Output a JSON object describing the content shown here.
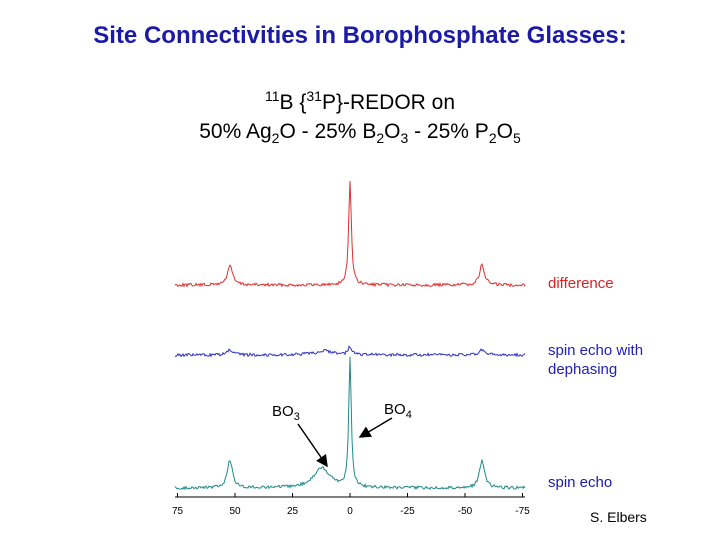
{
  "title": "Site Connectivities in Borophosphate Glasses:",
  "subtitle": {
    "line1": [
      "11",
      "B {",
      "31",
      "P}-REDOR on"
    ],
    "line2": [
      "50% Ag",
      "2",
      "O - 25% B",
      "2",
      "O",
      "3",
      " - 25% P",
      "2",
      "O",
      "5"
    ]
  },
  "traces": {
    "difference": "difference",
    "dephasing": [
      "spin echo with",
      "dephasing"
    ],
    "echo": "spin echo"
  },
  "annotations": {
    "bo3": [
      "BO",
      "3"
    ],
    "bo4": [
      "BO",
      "4"
    ]
  },
  "axis": {
    "ticks": [
      75,
      50,
      25,
      0,
      -25,
      -50,
      -75
    ]
  },
  "author": "S. Elbers"
}
